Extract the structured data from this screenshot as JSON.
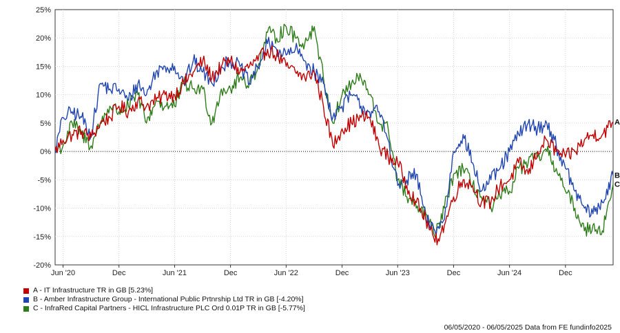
{
  "chart_data": {
    "type": "line",
    "ylim": [
      -20,
      25
    ],
    "y_ticks": [
      "25%",
      "20%",
      "15%",
      "10%",
      "5%",
      "0%",
      "-5%",
      "-10%",
      "-15%",
      "-20%"
    ],
    "y_tick_values": [
      25,
      20,
      15,
      10,
      5,
      0,
      -5,
      -10,
      -15,
      -20
    ],
    "x_range": [
      "2020-05-06",
      "2025-05-06"
    ],
    "x_ticks": [
      {
        "label": "Jun '20",
        "date": "2020-06-01"
      },
      {
        "label": "Dec",
        "date": "2020-12-01"
      },
      {
        "label": "Jun '21",
        "date": "2021-06-01"
      },
      {
        "label": "Dec",
        "date": "2021-12-01"
      },
      {
        "label": "Jun '22",
        "date": "2022-06-01"
      },
      {
        "label": "Dec",
        "date": "2022-12-01"
      },
      {
        "label": "Jun '23",
        "date": "2023-06-01"
      },
      {
        "label": "Dec",
        "date": "2023-12-01"
      },
      {
        "label": "Jun '24",
        "date": "2024-06-01"
      },
      {
        "label": "Dec",
        "date": "2024-12-01"
      }
    ],
    "grid": true,
    "zero_line": true,
    "series": [
      {
        "name": "A - IT Infrastructure TR in GB [5.23%]",
        "end_label": "A",
        "color": "#c00000",
        "points": [
          [
            "2020-05-06",
            0
          ],
          [
            "2020-06-01",
            2
          ],
          [
            "2020-07-01",
            3
          ],
          [
            "2020-08-01",
            3.5
          ],
          [
            "2020-09-01",
            2.5
          ],
          [
            "2020-10-01",
            5
          ],
          [
            "2020-11-01",
            6
          ],
          [
            "2020-12-01",
            8
          ],
          [
            "2021-01-01",
            7
          ],
          [
            "2021-02-01",
            9
          ],
          [
            "2021-03-01",
            8
          ],
          [
            "2021-04-01",
            9
          ],
          [
            "2021-05-01",
            10
          ],
          [
            "2021-06-01",
            10
          ],
          [
            "2021-07-01",
            12
          ],
          [
            "2021-08-01",
            14
          ],
          [
            "2021-09-01",
            16
          ],
          [
            "2021-10-01",
            13
          ],
          [
            "2021-11-01",
            15
          ],
          [
            "2021-12-01",
            16
          ],
          [
            "2022-01-01",
            14
          ],
          [
            "2022-02-01",
            15
          ],
          [
            "2022-03-01",
            16
          ],
          [
            "2022-04-01",
            18
          ],
          [
            "2022-05-01",
            17
          ],
          [
            "2022-06-01",
            15
          ],
          [
            "2022-07-01",
            14
          ],
          [
            "2022-08-01",
            13
          ],
          [
            "2022-09-01",
            14
          ],
          [
            "2022-10-01",
            8
          ],
          [
            "2022-11-01",
            1
          ],
          [
            "2022-12-01",
            4
          ],
          [
            "2023-01-01",
            5
          ],
          [
            "2023-02-01",
            6
          ],
          [
            "2023-03-01",
            6
          ],
          [
            "2023-04-01",
            1
          ],
          [
            "2023-05-01",
            -1
          ],
          [
            "2023-06-01",
            -2
          ],
          [
            "2023-07-01",
            -6
          ],
          [
            "2023-08-01",
            -9
          ],
          [
            "2023-09-01",
            -12
          ],
          [
            "2023-10-01",
            -16
          ],
          [
            "2023-11-01",
            -13
          ],
          [
            "2023-12-01",
            -8
          ],
          [
            "2024-01-01",
            -5
          ],
          [
            "2024-02-01",
            -6
          ],
          [
            "2024-03-01",
            -9
          ],
          [
            "2024-04-01",
            -9
          ],
          [
            "2024-05-01",
            -6
          ],
          [
            "2024-06-01",
            -5
          ],
          [
            "2024-07-01",
            -2
          ],
          [
            "2024-08-01",
            -4
          ],
          [
            "2024-09-01",
            0
          ],
          [
            "2024-10-01",
            2
          ],
          [
            "2024-11-01",
            0
          ],
          [
            "2024-12-01",
            -1
          ],
          [
            "2025-01-01",
            0
          ],
          [
            "2025-02-01",
            2
          ],
          [
            "2025-03-01",
            3
          ],
          [
            "2025-04-01",
            3
          ],
          [
            "2025-05-06",
            5.23
          ]
        ]
      },
      {
        "name": "B - Amber Infrastructure Group - International Public Prtnrship Ltd TR in GB [-4.20%]",
        "end_label": "B",
        "color": "#2044b0",
        "points": [
          [
            "2020-05-06",
            0
          ],
          [
            "2020-06-01",
            6
          ],
          [
            "2020-07-01",
            7
          ],
          [
            "2020-08-01",
            6
          ],
          [
            "2020-09-01",
            3
          ],
          [
            "2020-10-01",
            12
          ],
          [
            "2020-11-01",
            11
          ],
          [
            "2020-12-01",
            11
          ],
          [
            "2021-01-01",
            9
          ],
          [
            "2021-02-01",
            12
          ],
          [
            "2021-03-01",
            10
          ],
          [
            "2021-04-01",
            14
          ],
          [
            "2021-05-01",
            15
          ],
          [
            "2021-06-01",
            15
          ],
          [
            "2021-07-01",
            12
          ],
          [
            "2021-08-01",
            16
          ],
          [
            "2021-09-01",
            14
          ],
          [
            "2021-10-01",
            12
          ],
          [
            "2021-11-01",
            15
          ],
          [
            "2021-12-01",
            16
          ],
          [
            "2022-01-01",
            15
          ],
          [
            "2022-02-01",
            12
          ],
          [
            "2022-03-01",
            15
          ],
          [
            "2022-04-01",
            19
          ],
          [
            "2022-05-01",
            18
          ],
          [
            "2022-06-01",
            17
          ],
          [
            "2022-07-01",
            18
          ],
          [
            "2022-08-01",
            16
          ],
          [
            "2022-09-01",
            14
          ],
          [
            "2022-10-01",
            12
          ],
          [
            "2022-11-01",
            6
          ],
          [
            "2022-12-01",
            8
          ],
          [
            "2023-01-01",
            10
          ],
          [
            "2023-02-01",
            8
          ],
          [
            "2023-03-01",
            7
          ],
          [
            "2023-04-01",
            7
          ],
          [
            "2023-05-01",
            2
          ],
          [
            "2023-06-01",
            -6
          ],
          [
            "2023-07-01",
            -5
          ],
          [
            "2023-08-01",
            -4
          ],
          [
            "2023-09-01",
            -12
          ],
          [
            "2023-10-01",
            -14
          ],
          [
            "2023-11-01",
            -12
          ],
          [
            "2023-12-01",
            0
          ],
          [
            "2024-01-01",
            3
          ],
          [
            "2024-02-01",
            -2
          ],
          [
            "2024-03-01",
            -7
          ],
          [
            "2024-04-01",
            -5
          ],
          [
            "2024-05-01",
            -3
          ],
          [
            "2024-06-01",
            0
          ],
          [
            "2024-07-01",
            3
          ],
          [
            "2024-08-01",
            5
          ],
          [
            "2024-09-01",
            4
          ],
          [
            "2024-10-01",
            5
          ],
          [
            "2024-11-01",
            1
          ],
          [
            "2024-12-01",
            -3
          ],
          [
            "2025-01-01",
            -7
          ],
          [
            "2025-02-01",
            -10
          ],
          [
            "2025-03-01",
            -11
          ],
          [
            "2025-04-01",
            -9
          ],
          [
            "2025-05-06",
            -4.2
          ]
        ]
      },
      {
        "name": "C - InfraRed Capital Partners - HICL Infrastructure PLC Ord 0.01P TR in GB [-5.77%]",
        "end_label": "C",
        "color": "#2e7d1a",
        "points": [
          [
            "2020-05-06",
            0
          ],
          [
            "2020-06-01",
            1
          ],
          [
            "2020-07-01",
            5
          ],
          [
            "2020-08-01",
            3
          ],
          [
            "2020-09-01",
            1
          ],
          [
            "2020-10-01",
            5
          ],
          [
            "2020-11-01",
            8
          ],
          [
            "2020-12-01",
            7
          ],
          [
            "2021-01-01",
            8
          ],
          [
            "2021-02-01",
            10
          ],
          [
            "2021-03-01",
            5
          ],
          [
            "2021-04-01",
            9
          ],
          [
            "2021-05-01",
            8
          ],
          [
            "2021-06-01",
            8
          ],
          [
            "2021-07-01",
            12
          ],
          [
            "2021-08-01",
            11
          ],
          [
            "2021-09-01",
            11
          ],
          [
            "2021-10-01",
            5
          ],
          [
            "2021-11-01",
            11
          ],
          [
            "2021-12-01",
            11
          ],
          [
            "2022-01-01",
            13
          ],
          [
            "2022-02-01",
            12
          ],
          [
            "2022-03-01",
            15
          ],
          [
            "2022-04-01",
            21
          ],
          [
            "2022-05-01",
            20
          ],
          [
            "2022-06-01",
            22
          ],
          [
            "2022-07-01",
            20
          ],
          [
            "2022-08-01",
            19
          ],
          [
            "2022-09-01",
            22
          ],
          [
            "2022-10-01",
            13
          ],
          [
            "2022-11-01",
            5
          ],
          [
            "2022-12-01",
            10
          ],
          [
            "2023-01-01",
            12
          ],
          [
            "2023-02-01",
            13
          ],
          [
            "2023-03-01",
            10
          ],
          [
            "2023-04-01",
            5
          ],
          [
            "2023-05-01",
            4
          ],
          [
            "2023-06-01",
            -5
          ],
          [
            "2023-07-01",
            -8
          ],
          [
            "2023-08-01",
            -10
          ],
          [
            "2023-09-01",
            -11
          ],
          [
            "2023-10-01",
            -15
          ],
          [
            "2023-11-01",
            -10
          ],
          [
            "2023-12-01",
            -4
          ],
          [
            "2024-01-01",
            -3
          ],
          [
            "2024-02-01",
            -6
          ],
          [
            "2024-03-01",
            -8
          ],
          [
            "2024-04-01",
            -10
          ],
          [
            "2024-05-01",
            -8
          ],
          [
            "2024-06-01",
            -7
          ],
          [
            "2024-07-01",
            -3
          ],
          [
            "2024-08-01",
            -2
          ],
          [
            "2024-09-01",
            -1
          ],
          [
            "2024-10-01",
            0
          ],
          [
            "2024-11-01",
            -3
          ],
          [
            "2024-12-01",
            -7
          ],
          [
            "2025-01-01",
            -10
          ],
          [
            "2025-02-01",
            -14
          ],
          [
            "2025-03-01",
            -13
          ],
          [
            "2025-04-01",
            -14
          ],
          [
            "2025-05-06",
            -5.77
          ]
        ]
      }
    ]
  },
  "footer": {
    "text": "06/05/2020 - 06/05/2025 Data from FE fundinfo2025"
  }
}
